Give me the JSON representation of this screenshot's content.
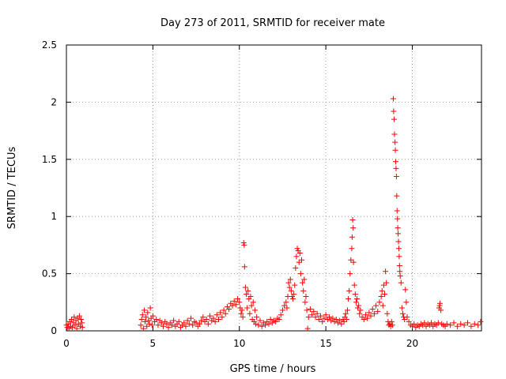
{
  "chart_data": {
    "type": "scatter",
    "title": "Day 273 of 2011, SRMTID for receiver mate",
    "xlabel": "GPS time / hours",
    "ylabel": "SRMTID / TECUs",
    "xlim": [
      0,
      24
    ],
    "ylim": [
      0,
      2.5
    ],
    "x_ticks": [
      0,
      5,
      10,
      15,
      20
    ],
    "x_tick_labels": [
      "0",
      "5",
      "10",
      "15",
      "20"
    ],
    "y_ticks": [
      0,
      0.5,
      1,
      1.5,
      2,
      2.5
    ],
    "y_tick_labels": [
      "0",
      "0.5",
      "1",
      "1.5",
      "2",
      "2.5"
    ],
    "grid": true,
    "marker": "+",
    "color": "#ff0000",
    "series": [
      {
        "name": "SRMTID",
        "points": [
          [
            0.0,
            0.05
          ],
          [
            0.05,
            0.03
          ],
          [
            0.1,
            0.06
          ],
          [
            0.15,
            0.02
          ],
          [
            0.2,
            0.08
          ],
          [
            0.25,
            0.04
          ],
          [
            0.3,
            0.1
          ],
          [
            0.35,
            0.03
          ],
          [
            0.4,
            0.07
          ],
          [
            0.45,
            0.12
          ],
          [
            0.5,
            0.05
          ],
          [
            0.55,
            0.09
          ],
          [
            0.6,
            0.02
          ],
          [
            0.65,
            0.11
          ],
          [
            0.7,
            0.06
          ],
          [
            0.75,
            0.13
          ],
          [
            0.8,
            0.04
          ],
          [
            0.85,
            0.1
          ],
          [
            0.9,
            0.07
          ],
          [
            0.92,
            0.03
          ],
          [
            4.3,
            0.05
          ],
          [
            4.35,
            0.1
          ],
          [
            4.4,
            0.14
          ],
          [
            4.45,
            0.02
          ],
          [
            4.5,
            0.18
          ],
          [
            4.55,
            0.08
          ],
          [
            4.6,
            0.12
          ],
          [
            4.65,
            0.04
          ],
          [
            4.7,
            0.16
          ],
          [
            4.75,
            0.09
          ],
          [
            4.8,
            0.06
          ],
          [
            4.85,
            0.2
          ],
          [
            4.9,
            0.11
          ],
          [
            4.95,
            0.05
          ],
          [
            5.0,
            0.13
          ],
          [
            5.1,
            0.08
          ],
          [
            5.2,
            0.1
          ],
          [
            5.3,
            0.05
          ],
          [
            5.4,
            0.09
          ],
          [
            5.5,
            0.07
          ],
          [
            5.6,
            0.04
          ],
          [
            5.7,
            0.08
          ],
          [
            5.8,
            0.06
          ],
          [
            5.9,
            0.03
          ],
          [
            6.0,
            0.07
          ],
          [
            6.1,
            0.05
          ],
          [
            6.2,
            0.09
          ],
          [
            6.3,
            0.04
          ],
          [
            6.4,
            0.06
          ],
          [
            6.5,
            0.08
          ],
          [
            6.6,
            0.03
          ],
          [
            6.7,
            0.05
          ],
          [
            6.8,
            0.07
          ],
          [
            6.9,
            0.04
          ],
          [
            7.0,
            0.09
          ],
          [
            7.1,
            0.06
          ],
          [
            7.2,
            0.11
          ],
          [
            7.3,
            0.05
          ],
          [
            7.4,
            0.08
          ],
          [
            7.5,
            0.07
          ],
          [
            7.6,
            0.04
          ],
          [
            7.7,
            0.06
          ],
          [
            7.8,
            0.09
          ],
          [
            7.9,
            0.12
          ],
          [
            8.0,
            0.08
          ],
          [
            8.1,
            0.1
          ],
          [
            8.2,
            0.06
          ],
          [
            8.3,
            0.13
          ],
          [
            8.4,
            0.09
          ],
          [
            8.5,
            0.11
          ],
          [
            8.6,
            0.08
          ],
          [
            8.7,
            0.14
          ],
          [
            8.8,
            0.1
          ],
          [
            8.9,
            0.16
          ],
          [
            9.0,
            0.12
          ],
          [
            9.1,
            0.18
          ],
          [
            9.2,
            0.15
          ],
          [
            9.3,
            0.21
          ],
          [
            9.4,
            0.19
          ],
          [
            9.5,
            0.24
          ],
          [
            9.6,
            0.22
          ],
          [
            9.7,
            0.26
          ],
          [
            9.8,
            0.23
          ],
          [
            9.9,
            0.28
          ],
          [
            10.0,
            0.25
          ],
          [
            10.05,
            0.2
          ],
          [
            10.1,
            0.15
          ],
          [
            10.15,
            0.18
          ],
          [
            10.2,
            0.12
          ],
          [
            10.25,
            0.77
          ],
          [
            10.28,
            0.75
          ],
          [
            10.3,
            0.56
          ],
          [
            10.35,
            0.38
          ],
          [
            10.4,
            0.32
          ],
          [
            10.45,
            0.2
          ],
          [
            10.5,
            0.35
          ],
          [
            10.55,
            0.28
          ],
          [
            10.6,
            0.15
          ],
          [
            10.65,
            0.3
          ],
          [
            10.7,
            0.22
          ],
          [
            10.75,
            0.1
          ],
          [
            10.8,
            0.25
          ],
          [
            10.85,
            0.08
          ],
          [
            10.9,
            0.18
          ],
          [
            10.95,
            0.06
          ],
          [
            11.0,
            0.12
          ],
          [
            11.1,
            0.05
          ],
          [
            11.2,
            0.09
          ],
          [
            11.3,
            0.04
          ],
          [
            11.4,
            0.07
          ],
          [
            11.5,
            0.05
          ],
          [
            11.6,
            0.08
          ],
          [
            11.7,
            0.06
          ],
          [
            11.8,
            0.1
          ],
          [
            11.9,
            0.07
          ],
          [
            12.0,
            0.09
          ],
          [
            12.1,
            0.08
          ],
          [
            12.2,
            0.11
          ],
          [
            12.3,
            0.1
          ],
          [
            12.4,
            0.14
          ],
          [
            12.5,
            0.18
          ],
          [
            12.6,
            0.22
          ],
          [
            12.7,
            0.25
          ],
          [
            12.75,
            0.2
          ],
          [
            12.8,
            0.3
          ],
          [
            12.85,
            0.42
          ],
          [
            12.9,
            0.38
          ],
          [
            12.95,
            0.45
          ],
          [
            13.0,
            0.35
          ],
          [
            13.05,
            0.3
          ],
          [
            13.1,
            0.28
          ],
          [
            13.15,
            0.32
          ],
          [
            13.2,
            0.4
          ],
          [
            13.25,
            0.55
          ],
          [
            13.3,
            0.65
          ],
          [
            13.35,
            0.72
          ],
          [
            13.4,
            0.7
          ],
          [
            13.45,
            0.6
          ],
          [
            13.5,
            0.68
          ],
          [
            13.55,
            0.5
          ],
          [
            13.6,
            0.62
          ],
          [
            13.65,
            0.42
          ],
          [
            13.7,
            0.35
          ],
          [
            13.75,
            0.45
          ],
          [
            13.8,
            0.25
          ],
          [
            13.85,
            0.3
          ],
          [
            13.9,
            0.18
          ],
          [
            13.95,
            0.02
          ],
          [
            14.0,
            0.12
          ],
          [
            14.1,
            0.19
          ],
          [
            14.2,
            0.14
          ],
          [
            14.3,
            0.17
          ],
          [
            14.4,
            0.12
          ],
          [
            14.5,
            0.15
          ],
          [
            14.6,
            0.1
          ],
          [
            14.7,
            0.13
          ],
          [
            14.8,
            0.08
          ],
          [
            14.9,
            0.11
          ],
          [
            15.0,
            0.14
          ],
          [
            15.1,
            0.1
          ],
          [
            15.2,
            0.12
          ],
          [
            15.3,
            0.09
          ],
          [
            15.4,
            0.11
          ],
          [
            15.5,
            0.08
          ],
          [
            15.6,
            0.1
          ],
          [
            15.7,
            0.07
          ],
          [
            15.8,
            0.09
          ],
          [
            15.9,
            0.06
          ],
          [
            16.0,
            0.1
          ],
          [
            16.05,
            0.08
          ],
          [
            16.1,
            0.12
          ],
          [
            16.15,
            0.15
          ],
          [
            16.2,
            0.1
          ],
          [
            16.25,
            0.18
          ],
          [
            16.3,
            0.28
          ],
          [
            16.35,
            0.35
          ],
          [
            16.4,
            0.5
          ],
          [
            16.45,
            0.62
          ],
          [
            16.5,
            0.72
          ],
          [
            16.52,
            0.82
          ],
          [
            16.55,
            0.97
          ],
          [
            16.58,
            0.9
          ],
          [
            16.6,
            0.6
          ],
          [
            16.65,
            0.4
          ],
          [
            16.7,
            0.32
          ],
          [
            16.75,
            0.25
          ],
          [
            16.8,
            0.28
          ],
          [
            16.85,
            0.2
          ],
          [
            16.9,
            0.22
          ],
          [
            16.95,
            0.15
          ],
          [
            17.0,
            0.18
          ],
          [
            17.1,
            0.12
          ],
          [
            17.2,
            0.1
          ],
          [
            17.3,
            0.14
          ],
          [
            17.4,
            0.11
          ],
          [
            17.5,
            0.16
          ],
          [
            17.6,
            0.13
          ],
          [
            17.7,
            0.19
          ],
          [
            17.8,
            0.15
          ],
          [
            17.9,
            0.22
          ],
          [
            18.0,
            0.17
          ],
          [
            18.1,
            0.25
          ],
          [
            18.2,
            0.3
          ],
          [
            18.25,
            0.35
          ],
          [
            18.3,
            0.22
          ],
          [
            18.35,
            0.4
          ],
          [
            18.4,
            0.32
          ],
          [
            18.45,
            0.52
          ],
          [
            18.5,
            0.42
          ],
          [
            18.55,
            0.15
          ],
          [
            18.6,
            0.08
          ],
          [
            18.65,
            0.05
          ],
          [
            18.7,
            0.06
          ],
          [
            18.75,
            0.04
          ],
          [
            18.8,
            0.08
          ],
          [
            18.85,
            0.05
          ],
          [
            18.9,
            2.03
          ],
          [
            18.92,
            1.92
          ],
          [
            18.95,
            1.85
          ],
          [
            18.97,
            1.72
          ],
          [
            19.0,
            1.65
          ],
          [
            19.02,
            1.58
          ],
          [
            19.04,
            1.48
          ],
          [
            19.06,
            1.42
          ],
          [
            19.08,
            1.35
          ],
          [
            19.1,
            1.18
          ],
          [
            19.12,
            1.05
          ],
          [
            19.14,
            0.98
          ],
          [
            19.16,
            0.9
          ],
          [
            19.18,
            0.85
          ],
          [
            19.2,
            0.78
          ],
          [
            19.22,
            0.72
          ],
          [
            19.24,
            0.65
          ],
          [
            19.26,
            0.57
          ],
          [
            19.28,
            0.52
          ],
          [
            19.3,
            0.48
          ],
          [
            19.35,
            0.42
          ],
          [
            19.4,
            0.2
          ],
          [
            19.45,
            0.15
          ],
          [
            19.5,
            0.12
          ],
          [
            19.55,
            0.1
          ],
          [
            19.6,
            0.36
          ],
          [
            19.65,
            0.25
          ],
          [
            19.7,
            0.12
          ],
          [
            19.8,
            0.08
          ],
          [
            19.9,
            0.05
          ],
          [
            20.0,
            0.04
          ],
          [
            20.1,
            0.06
          ],
          [
            20.2,
            0.03
          ],
          [
            20.3,
            0.05
          ],
          [
            20.4,
            0.04
          ],
          [
            20.5,
            0.06
          ],
          [
            20.6,
            0.05
          ],
          [
            20.7,
            0.07
          ],
          [
            20.8,
            0.04
          ],
          [
            20.9,
            0.06
          ],
          [
            21.0,
            0.05
          ],
          [
            21.1,
            0.07
          ],
          [
            21.2,
            0.04
          ],
          [
            21.3,
            0.06
          ],
          [
            21.4,
            0.05
          ],
          [
            21.5,
            0.07
          ],
          [
            21.55,
            0.2
          ],
          [
            21.58,
            0.22
          ],
          [
            21.6,
            0.24
          ],
          [
            21.65,
            0.18
          ],
          [
            21.7,
            0.06
          ],
          [
            21.8,
            0.05
          ],
          [
            21.9,
            0.04
          ],
          [
            22.0,
            0.06
          ],
          [
            22.2,
            0.05
          ],
          [
            22.4,
            0.07
          ],
          [
            22.6,
            0.04
          ],
          [
            22.8,
            0.06
          ],
          [
            23.0,
            0.05
          ],
          [
            23.2,
            0.07
          ],
          [
            23.4,
            0.04
          ],
          [
            23.6,
            0.06
          ],
          [
            23.8,
            0.05
          ],
          [
            23.95,
            0.08
          ]
        ]
      }
    ]
  }
}
